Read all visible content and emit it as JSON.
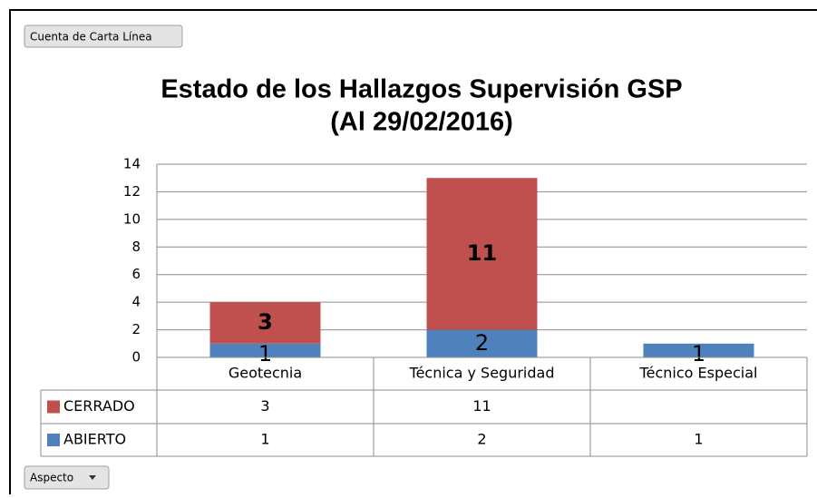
{
  "buttons": {
    "field": "Cuenta de Carta Línea",
    "axis": "Aspecto"
  },
  "chart_data": {
    "type": "stacked-bar",
    "title": [
      "Estado de los Hallazgos Supervisión GSP",
      "(Al 29/02/2016)"
    ],
    "categories": [
      "Geotecnia",
      "Técnica y Seguridad",
      "Técnico Especial"
    ],
    "series": [
      {
        "name": "ABIERTO",
        "color": "#4f81bd",
        "values": [
          1,
          2,
          1
        ]
      },
      {
        "name": "CERRADO",
        "color": "#c0504d",
        "values": [
          3,
          11,
          null
        ]
      }
    ],
    "ylim": [
      0,
      14
    ],
    "yticks": [
      0,
      2,
      4,
      6,
      8,
      10,
      12,
      14
    ],
    "grid": true,
    "data_table": true
  }
}
